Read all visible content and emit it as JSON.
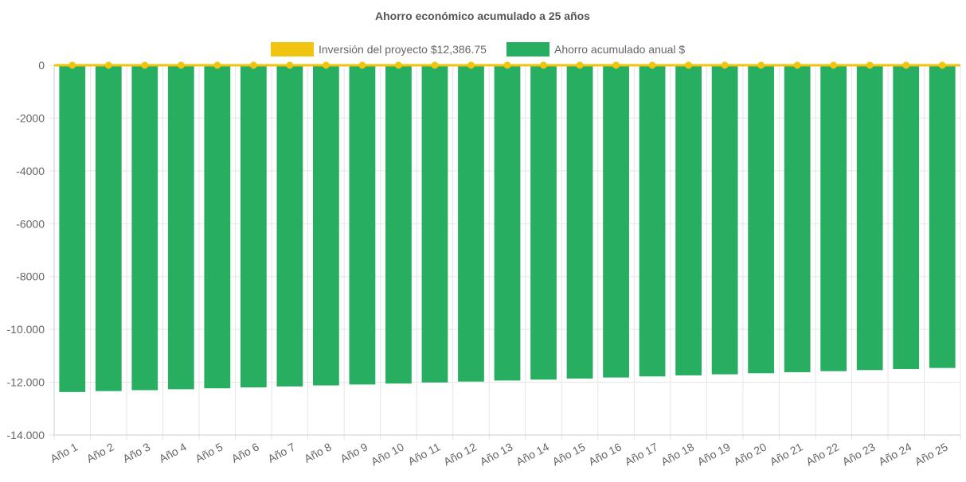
{
  "chart_data": {
    "type": "bar",
    "title": "Ahorro económico acumulado a 25 años",
    "categories": [
      "Año 1",
      "Año 2",
      "Año 3",
      "Año 4",
      "Año 5",
      "Año 6",
      "Año 7",
      "Año 8",
      "Año 9",
      "Año 10",
      "Año 11",
      "Año 12",
      "Año 13",
      "Año 14",
      "Año 15",
      "Año 16",
      "Año 17",
      "Año 18",
      "Año 19",
      "Año 20",
      "Año 21",
      "Año 22",
      "Año 23",
      "Año 24",
      "Año 25"
    ],
    "series": [
      {
        "name": "Inversión del proyecto $12,386.75",
        "kind": "line",
        "color": "#f1c40f",
        "values": [
          0,
          0,
          0,
          0,
          0,
          0,
          0,
          0,
          0,
          0,
          0,
          0,
          0,
          0,
          0,
          0,
          0,
          0,
          0,
          0,
          0,
          0,
          0,
          0,
          0
        ]
      },
      {
        "name": "Ahorro acumulado anual $",
        "kind": "bar",
        "color": "#27ae60",
        "values": [
          -12370,
          -12335,
          -12300,
          -12265,
          -12230,
          -12195,
          -12160,
          -12120,
          -12085,
          -12050,
          -12010,
          -11975,
          -11935,
          -11900,
          -11860,
          -11820,
          -11780,
          -11740,
          -11700,
          -11660,
          -11620,
          -11580,
          -11540,
          -11500,
          -11460
        ]
      }
    ],
    "ylim": [
      -14000,
      0
    ],
    "yticks": [
      {
        "value": 0,
        "label": "0"
      },
      {
        "value": -2000,
        "label": "-2000"
      },
      {
        "value": -4000,
        "label": "-4000"
      },
      {
        "value": -6000,
        "label": "-6000"
      },
      {
        "value": -8000,
        "label": "-8000"
      },
      {
        "value": -10000,
        "label": "-10.000"
      },
      {
        "value": -12000,
        "label": "-12.000"
      },
      {
        "value": -14000,
        "label": "-14.000"
      }
    ],
    "xlabel": "",
    "ylabel": "",
    "grid": true,
    "legend": "top-center"
  }
}
